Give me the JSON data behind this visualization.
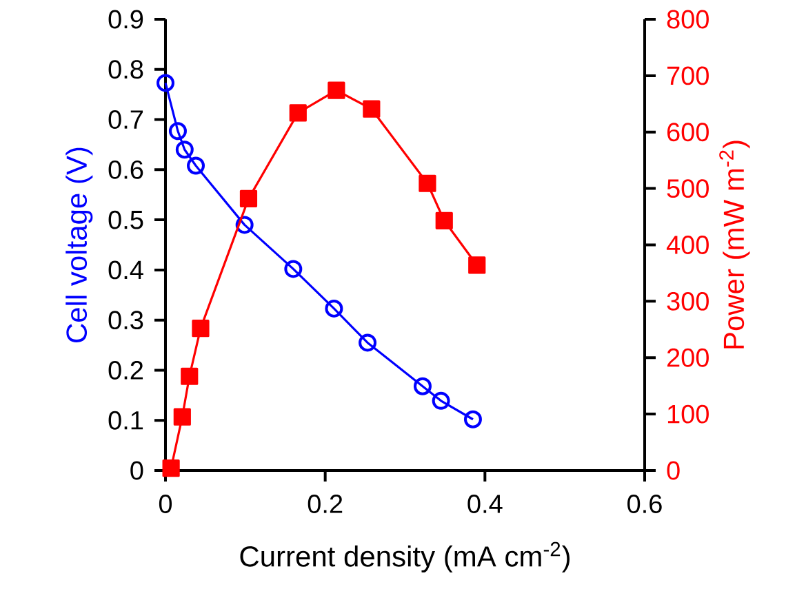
{
  "chart_data": {
    "type": "line",
    "xlabel": "Current density (mA cm$^{-2}$)",
    "ylabel": "Cell voltage (V)",
    "y2label": "Power (mW m$^{-2}$)",
    "x": [
      0,
      0.0155,
      0.024,
      0.038,
      0.099,
      0.16,
      0.211,
      0.253,
      0.322,
      0.345,
      0.385
    ],
    "series": [
      {
        "color": "#0000ff",
        "marker": "circle",
        "axis": "y",
        "values": [
          0.773,
          0.677,
          0.64,
          0.608,
          0.49,
          0.402,
          0.323,
          0.255,
          0.168,
          0.139,
          0.102
        ]
      },
      {
        "color": "#ff0000",
        "marker": "square",
        "axis": "y2",
        "x": [
          0.007,
          0.021,
          0.03,
          0.044,
          0.104,
          0.166,
          0.214,
          0.258,
          0.328,
          0.349,
          0.39
        ],
        "values": [
          4,
          95,
          167,
          252,
          482,
          634,
          674,
          641,
          509,
          443,
          364
        ]
      }
    ],
    "xlim": [
      0,
      0.6
    ],
    "xticks": [
      0,
      0.2,
      0.4,
      0.6
    ],
    "ylim": [
      0,
      0.9
    ],
    "yticks": [
      0,
      0.1,
      0.2,
      0.3,
      0.4,
      0.5,
      0.6,
      0.7,
      0.8,
      0.9
    ],
    "y2lim": [
      0,
      800
    ],
    "y2ticks": [
      0,
      100,
      200,
      300,
      400,
      500,
      600,
      700,
      800
    ],
    "grid": false
  }
}
